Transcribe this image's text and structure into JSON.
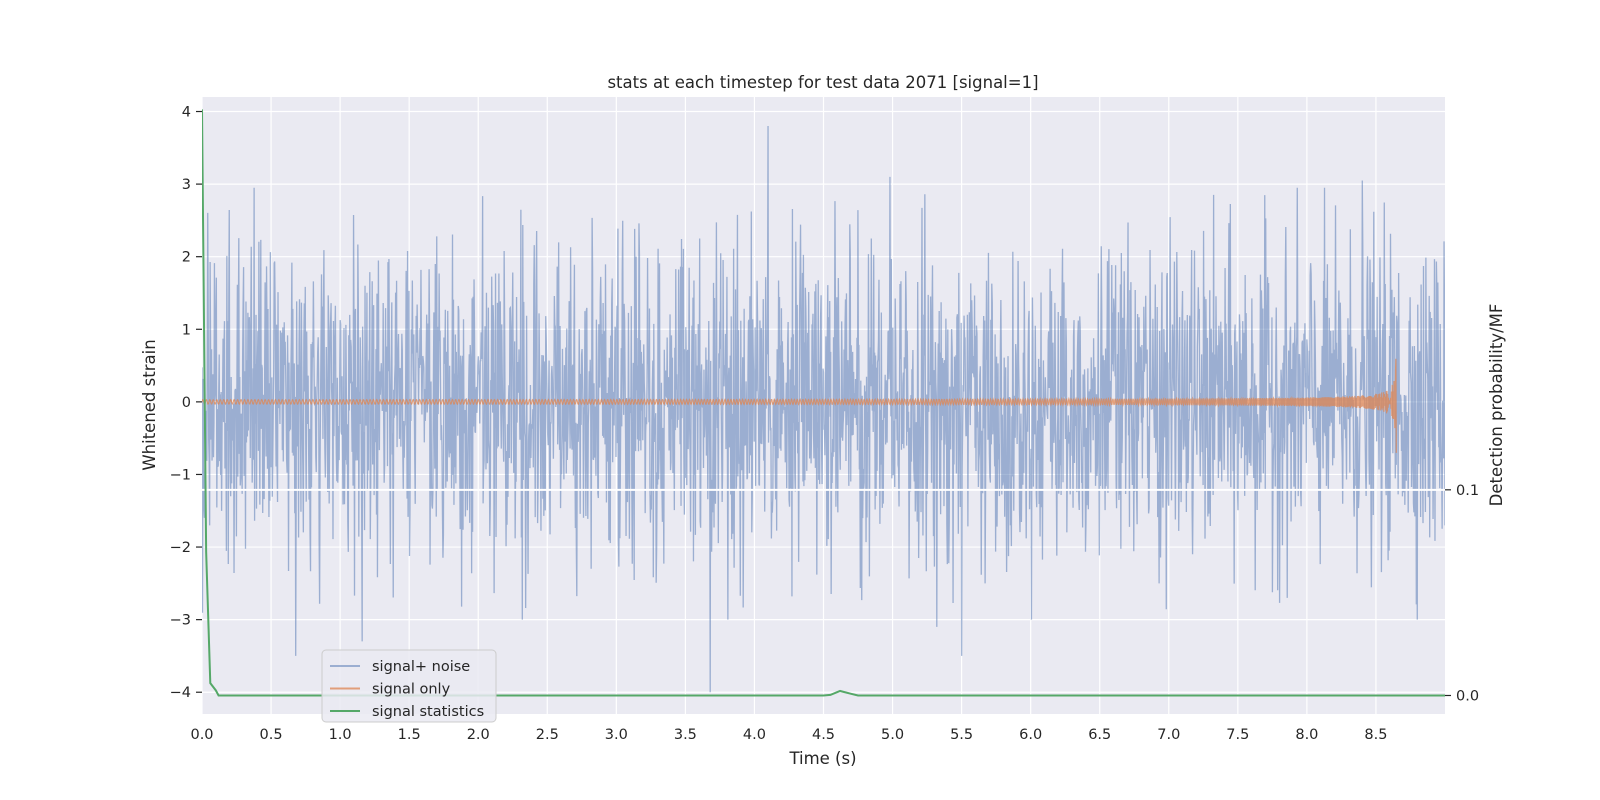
{
  "chart_data": {
    "type": "line",
    "title": "stats at each timestep for test data 2071 [signal=1]",
    "xlabel": "Time (s)",
    "ylabel": "Whitened strain",
    "ylabel_right": "Detection probability/MF",
    "xlim": [
      0.0,
      9.0
    ],
    "ylim": [
      -4.3,
      4.2
    ],
    "ylim_right": [
      -0.009,
      0.291
    ],
    "x_ticks": [
      "0.0",
      "0.5",
      "1.0",
      "1.5",
      "2.0",
      "2.5",
      "3.0",
      "3.5",
      "4.0",
      "4.5",
      "5.0",
      "5.5",
      "6.0",
      "6.5",
      "7.0",
      "7.5",
      "8.0",
      "8.5"
    ],
    "y_ticks": [
      "4",
      "3",
      "2",
      "1",
      "0",
      "−1",
      "−2",
      "−3",
      "−4"
    ],
    "y_ticks_right": [
      "0.1",
      "0.0"
    ],
    "grid": true,
    "legend_position": "lower left",
    "series": [
      {
        "name": "signal+ noise",
        "color": "#4c72b0",
        "alpha": 0.5,
        "description_range": [
          -4.0,
          3.8
        ],
        "peaks": [
          [
            0.68,
            -3.5
          ],
          [
            1.16,
            -3.3
          ],
          [
            3.68,
            -4.0
          ],
          [
            4.1,
            3.8
          ],
          [
            4.98,
            3.1
          ],
          [
            5.32,
            -3.1
          ],
          [
            5.5,
            -3.5
          ],
          [
            8.4,
            3.05
          ]
        ]
      },
      {
        "name": "signal only",
        "color": "#dd8452",
        "x_end": 8.65,
        "chirp_peak_amplitude": 0.7
      },
      {
        "name": "signal statistics",
        "color": "#55a868",
        "axis": "right",
        "x": [
          0.0,
          0.03,
          0.06,
          0.1,
          0.12,
          4.5,
          4.55,
          4.62,
          4.7,
          4.75,
          9.0
        ],
        "values": [
          0.285,
          0.07,
          0.006,
          0.0025,
          0.0,
          0.0,
          0.0003,
          0.0022,
          0.0008,
          0.0,
          0.0
        ]
      }
    ],
    "hline_right": {
      "value": 0.1,
      "color": "#ffffff"
    }
  }
}
